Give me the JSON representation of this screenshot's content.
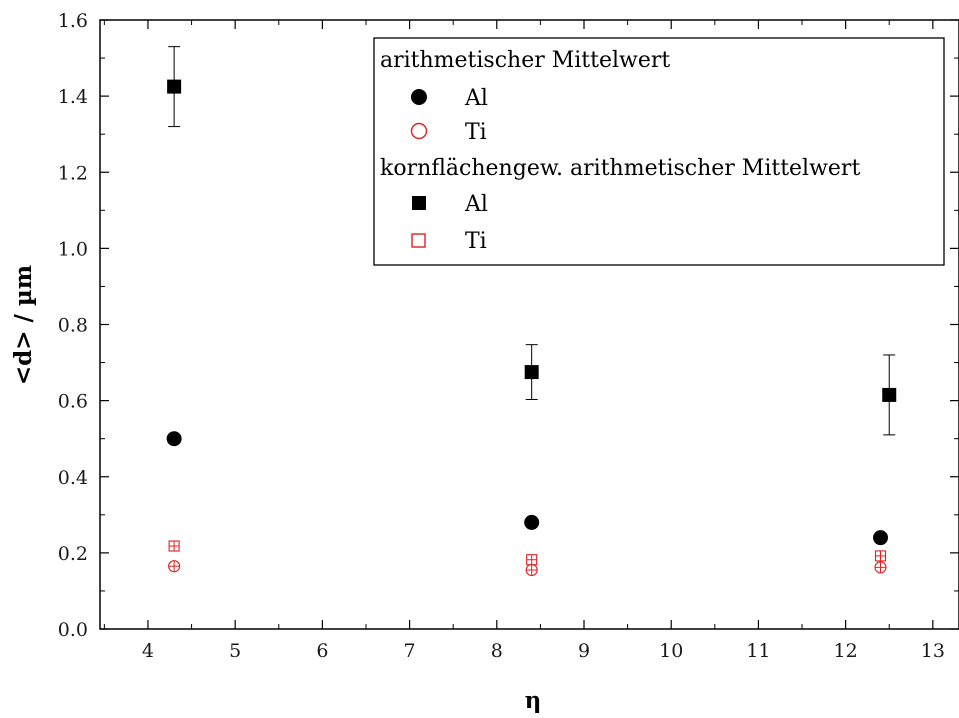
{
  "chart_data": {
    "type": "scatter",
    "xlabel": "η",
    "ylabel": "<d> / µm",
    "xlim": [
      3.45,
      13.3
    ],
    "ylim": [
      0.0,
      1.6
    ],
    "x_ticks": [
      4,
      5,
      6,
      7,
      8,
      9,
      10,
      11,
      12,
      13
    ],
    "y_ticks": [
      0.0,
      0.2,
      0.4,
      0.6,
      0.8,
      1.0,
      1.2,
      1.4,
      1.6
    ],
    "y_tick_labels": [
      "0.0",
      "0.2",
      "0.4",
      "0.6",
      "0.8",
      "1.0",
      "1.2",
      "1.4",
      "1.6"
    ],
    "grid": false,
    "legend_position": "top-right",
    "legend": {
      "group1_title": "arithmetischer Mittelwert",
      "group2_title": "kornflächengew. arithmetischer Mittelwert",
      "entries": [
        {
          "series": 0,
          "label": "Al"
        },
        {
          "series": 1,
          "label": "Ti"
        },
        {
          "series": 2,
          "label": "Al"
        },
        {
          "series": 3,
          "label": "Ti"
        }
      ]
    },
    "series": [
      {
        "name": "Al",
        "group": "arithmetischer Mittelwert",
        "marker": "circle-filled",
        "color": "#000000",
        "points": [
          {
            "x": 4.3,
            "y": 0.5
          },
          {
            "x": 8.4,
            "y": 0.28
          },
          {
            "x": 12.4,
            "y": 0.24
          }
        ]
      },
      {
        "name": "Ti",
        "group": "arithmetischer Mittelwert",
        "marker": "circle-open",
        "color": "#e02020",
        "points": [
          {
            "x": 4.3,
            "y": 0.165
          },
          {
            "x": 8.4,
            "y": 0.155
          },
          {
            "x": 12.4,
            "y": 0.162
          }
        ]
      },
      {
        "name": "Al",
        "group": "kornflächengew. arithmetischer Mittelwert",
        "marker": "square-filled",
        "color": "#000000",
        "points": [
          {
            "x": 4.3,
            "y": 1.425,
            "err": 0.105
          },
          {
            "x": 8.4,
            "y": 0.675,
            "err": 0.072
          },
          {
            "x": 12.5,
            "y": 0.615,
            "err": 0.105
          }
        ]
      },
      {
        "name": "Ti",
        "group": "kornflächengew. arithmetischer Mittelwert",
        "marker": "square-open",
        "color": "#e02020",
        "points": [
          {
            "x": 4.3,
            "y": 0.218
          },
          {
            "x": 8.4,
            "y": 0.182
          },
          {
            "x": 12.4,
            "y": 0.192
          }
        ]
      }
    ]
  }
}
